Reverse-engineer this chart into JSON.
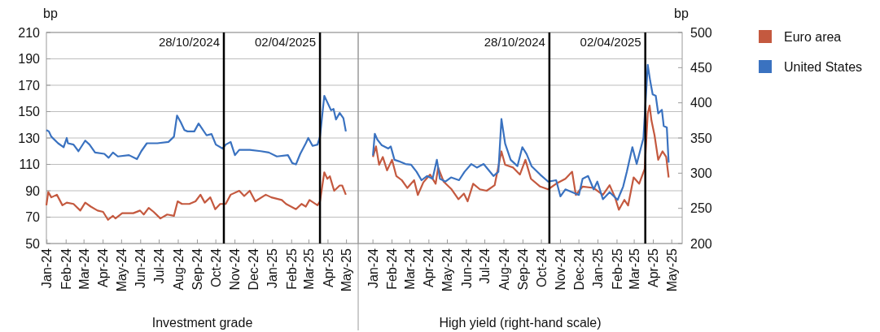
{
  "chart_data": [
    {
      "type": "line",
      "xlabel": "Investment grade",
      "ylabel": "bp",
      "ylim": [
        50,
        210
      ],
      "yticks": [
        50,
        70,
        90,
        110,
        130,
        150,
        170,
        190,
        210
      ],
      "grid": "y",
      "xlim": [
        "2024-01-14",
        "2025-06-03"
      ],
      "xticks": [
        {
          "value": "2024-01-15",
          "label": "Jan-24"
        },
        {
          "value": "2024-02-15",
          "label": "Feb-24"
        },
        {
          "value": "2024-03-15",
          "label": "Mar-24"
        },
        {
          "value": "2024-04-15",
          "label": "Apr-24"
        },
        {
          "value": "2024-05-15",
          "label": "May-24"
        },
        {
          "value": "2024-06-15",
          "label": "Jun-24"
        },
        {
          "value": "2024-07-15",
          "label": "Jul-24"
        },
        {
          "value": "2024-08-15",
          "label": "Aug-24"
        },
        {
          "value": "2024-09-15",
          "label": "Sep-24"
        },
        {
          "value": "2024-10-15",
          "label": "Oct-24"
        },
        {
          "value": "2024-11-15",
          "label": "Nov-24"
        },
        {
          "value": "2024-12-15",
          "label": "Dec-24"
        },
        {
          "value": "2025-01-15",
          "label": "Jan-25"
        },
        {
          "value": "2025-02-15",
          "label": "Feb-25"
        },
        {
          "value": "2025-03-15",
          "label": "Mar-25"
        },
        {
          "value": "2025-04-15",
          "label": "Apr-25"
        },
        {
          "value": "2025-05-15",
          "label": "May-25"
        }
      ],
      "ref_lines": [
        {
          "axis": "x",
          "value": "2024-10-28",
          "label": "28/10/2024",
          "color": "#000000"
        },
        {
          "axis": "x",
          "value": "2025-04-02",
          "label": "02/04/2025",
          "color": "#000000"
        }
      ],
      "series": [
        {
          "color": "#c4593f",
          "x": [
            "2024-01-14",
            "2024-01-17",
            "2024-01-22",
            "2024-01-31",
            "2024-02-09",
            "2024-02-16",
            "2024-02-27",
            "2024-03-09",
            "2024-03-17",
            "2024-03-26",
            "2024-04-06",
            "2024-04-15",
            "2024-04-23",
            "2024-05-01",
            "2024-05-05",
            "2024-05-16",
            "2024-06-03",
            "2024-06-14",
            "2024-06-20",
            "2024-06-28",
            "2024-07-06",
            "2024-07-17",
            "2024-07-28",
            "2024-08-08",
            "2024-08-14",
            "2024-08-21",
            "2024-09-02",
            "2024-09-12",
            "2024-09-20",
            "2024-09-27",
            "2024-10-06",
            "2024-10-14",
            "2024-10-22",
            "2024-10-31",
            "2024-11-08",
            "2024-11-22",
            "2024-11-30",
            "2024-12-09",
            "2024-12-18",
            "2025-01-04",
            "2025-01-13",
            "2025-01-30",
            "2025-02-06",
            "2025-02-22",
            "2025-03-03",
            "2025-03-10",
            "2025-03-16",
            "2025-03-29",
            "2025-04-02",
            "2025-04-09",
            "2025-04-14",
            "2025-04-18",
            "2025-04-25",
            "2025-05-04",
            "2025-05-08",
            "2025-05-14"
          ],
          "values": [
            79,
            89,
            85,
            87,
            79,
            81,
            80,
            75,
            81,
            78,
            75,
            74,
            68,
            71,
            69,
            73,
            73,
            75,
            72,
            77,
            74,
            69,
            72,
            71,
            82,
            80,
            80,
            82,
            87,
            81,
            85,
            76,
            80,
            80,
            87,
            90,
            86,
            90,
            82,
            87,
            85,
            83,
            80,
            76,
            80,
            78,
            83,
            79,
            82,
            104,
            99,
            101,
            90,
            94,
            94,
            87
          ]
        },
        {
          "color": "#3a72c0",
          "x": [
            "2024-01-14",
            "2024-01-18",
            "2024-01-22",
            "2024-02-02",
            "2024-02-11",
            "2024-02-16",
            "2024-02-18",
            "2024-02-27",
            "2024-03-06",
            "2024-03-17",
            "2024-03-24",
            "2024-04-02",
            "2024-04-17",
            "2024-04-24",
            "2024-05-01",
            "2024-05-09",
            "2024-05-27",
            "2024-06-09",
            "2024-06-16",
            "2024-06-25",
            "2024-07-12",
            "2024-07-30",
            "2024-08-08",
            "2024-08-13",
            "2024-08-19",
            "2024-08-25",
            "2024-08-30",
            "2024-09-10",
            "2024-09-17",
            "2024-09-30",
            "2024-10-08",
            "2024-10-15",
            "2024-10-26",
            "2024-10-31",
            "2024-11-08",
            "2024-11-15",
            "2024-11-22",
            "2024-12-09",
            "2024-12-27",
            "2025-01-09",
            "2025-01-22",
            "2025-02-09",
            "2025-02-16",
            "2025-02-22",
            "2025-03-01",
            "2025-03-10",
            "2025-03-14",
            "2025-03-21",
            "2025-03-29",
            "2025-04-02",
            "2025-04-09",
            "2025-04-14",
            "2025-04-20",
            "2025-04-24",
            "2025-04-28",
            "2025-05-04",
            "2025-05-10",
            "2025-05-14"
          ],
          "values": [
            136,
            135,
            131,
            126,
            123,
            130,
            126,
            125,
            120,
            128,
            125,
            119,
            118,
            115,
            119,
            116,
            117,
            114,
            120,
            126,
            126,
            127,
            131,
            147,
            142,
            136,
            135,
            135,
            141,
            132,
            133,
            125,
            122,
            125,
            127,
            117,
            121,
            121,
            120,
            119,
            116,
            117,
            111,
            110,
            118,
            126,
            130,
            124,
            125,
            131,
            162,
            157,
            151,
            152,
            144,
            149,
            145,
            135
          ]
        }
      ]
    },
    {
      "type": "line",
      "xlabel": "High yield (right-hand scale)",
      "y2label": "bp",
      "y2lim": [
        200,
        500
      ],
      "y2ticks": [
        200,
        250,
        300,
        350,
        400,
        450,
        500
      ],
      "xlim": [
        "2023-12-22",
        "2025-06-01"
      ],
      "xticks": [
        {
          "value": "2024-01-15",
          "label": "Jan-24"
        },
        {
          "value": "2024-02-15",
          "label": "Feb-24"
        },
        {
          "value": "2024-03-15",
          "label": "Mar-24"
        },
        {
          "value": "2024-04-15",
          "label": "Apr-24"
        },
        {
          "value": "2024-05-15",
          "label": "May-24"
        },
        {
          "value": "2024-06-15",
          "label": "Jun-24"
        },
        {
          "value": "2024-07-15",
          "label": "Jul-24"
        },
        {
          "value": "2024-08-15",
          "label": "Aug-24"
        },
        {
          "value": "2024-09-15",
          "label": "Sep-24"
        },
        {
          "value": "2024-10-15",
          "label": "Oct-24"
        },
        {
          "value": "2024-11-15",
          "label": "Nov-24"
        },
        {
          "value": "2024-12-15",
          "label": "Dec-24"
        },
        {
          "value": "2025-01-15",
          "label": "Jan-25"
        },
        {
          "value": "2025-02-15",
          "label": "Feb-25"
        },
        {
          "value": "2025-03-15",
          "label": "Mar-25"
        },
        {
          "value": "2025-04-15",
          "label": "Apr-25"
        },
        {
          "value": "2025-05-15",
          "label": "May-25"
        }
      ],
      "ref_lines": [
        {
          "axis": "x",
          "value": "2024-10-28",
          "label": "28/10/2024",
          "color": "#000000"
        },
        {
          "axis": "x",
          "value": "2025-04-02",
          "label": "02/04/2025",
          "color": "#000000"
        }
      ],
      "legend": "right",
      "series": [
        {
          "name": "Euro area",
          "color": "#c4593f",
          "axis": "y2",
          "x": [
            "2024-01-15",
            "2024-01-20",
            "2024-01-25",
            "2024-01-31",
            "2024-02-07",
            "2024-02-15",
            "2024-02-22",
            "2024-03-02",
            "2024-03-11",
            "2024-03-22",
            "2024-03-28",
            "2024-04-06",
            "2024-04-17",
            "2024-04-26",
            "2024-04-30",
            "2024-05-09",
            "2024-05-22",
            "2024-06-02",
            "2024-06-11",
            "2024-06-17",
            "2024-06-26",
            "2024-07-07",
            "2024-07-18",
            "2024-07-31",
            "2024-08-11",
            "2024-08-17",
            "2024-08-30",
            "2024-09-10",
            "2024-09-19",
            "2024-09-28",
            "2024-10-13",
            "2024-10-26",
            "2024-11-08",
            "2024-11-23",
            "2024-12-04",
            "2024-12-10",
            "2024-12-21",
            "2025-01-08",
            "2025-01-23",
            "2025-02-03",
            "2025-02-12",
            "2025-02-18",
            "2025-02-27",
            "2025-03-05",
            "2025-03-14",
            "2025-03-23",
            "2025-04-01",
            "2025-04-06",
            "2025-04-09",
            "2025-04-12",
            "2025-04-17",
            "2025-04-23",
            "2025-04-30",
            "2025-05-06",
            "2025-05-10"
          ],
          "values": [
            323,
            338,
            312,
            323,
            304,
            319,
            296,
            290,
            279,
            290,
            269,
            287,
            298,
            285,
            308,
            288,
            277,
            263,
            271,
            260,
            285,
            277,
            275,
            283,
            331,
            312,
            308,
            298,
            319,
            292,
            281,
            277,
            285,
            292,
            302,
            269,
            281,
            279,
            269,
            283,
            265,
            248,
            262,
            254,
            294,
            285,
            306,
            385,
            396,
            375,
            354,
            319,
            331,
            323,
            294
          ]
        },
        {
          "name": "United States",
          "color": "#3a72c0",
          "axis": "y2",
          "x": [
            "2024-01-15",
            "2024-01-18",
            "2024-01-22",
            "2024-01-29",
            "2024-02-09",
            "2024-02-13",
            "2024-02-19",
            "2024-02-26",
            "2024-03-08",
            "2024-03-17",
            "2024-03-26",
            "2024-04-03",
            "2024-04-12",
            "2024-04-21",
            "2024-04-28",
            "2024-05-03",
            "2024-05-12",
            "2024-05-21",
            "2024-06-03",
            "2024-06-12",
            "2024-06-23",
            "2024-07-02",
            "2024-07-13",
            "2024-07-29",
            "2024-08-06",
            "2024-08-11",
            "2024-08-17",
            "2024-08-26",
            "2024-09-06",
            "2024-09-14",
            "2024-09-21",
            "2024-09-29",
            "2024-10-13",
            "2024-10-26",
            "2024-11-08",
            "2024-11-15",
            "2024-11-23",
            "2024-12-04",
            "2024-12-15",
            "2024-12-21",
            "2024-12-30",
            "2025-01-08",
            "2025-01-14",
            "2025-01-23",
            "2025-02-03",
            "2025-02-16",
            "2025-02-25",
            "2025-03-03",
            "2025-03-12",
            "2025-03-19",
            "2025-03-30",
            "2025-04-06",
            "2025-04-10",
            "2025-04-14",
            "2025-04-19",
            "2025-04-23",
            "2025-04-29",
            "2025-05-02",
            "2025-05-07",
            "2025-05-10"
          ],
          "values": [
            325,
            356,
            348,
            340,
            335,
            338,
            319,
            317,
            313,
            312,
            302,
            290,
            296,
            292,
            319,
            292,
            288,
            294,
            290,
            302,
            313,
            308,
            313,
            296,
            302,
            377,
            342,
            319,
            310,
            337,
            327,
            310,
            298,
            288,
            290,
            267,
            277,
            273,
            269,
            292,
            296,
            277,
            288,
            263,
            273,
            262,
            281,
            302,
            337,
            313,
            350,
            454,
            431,
            412,
            410,
            385,
            390,
            367,
            365,
            315
          ]
        }
      ]
    }
  ]
}
